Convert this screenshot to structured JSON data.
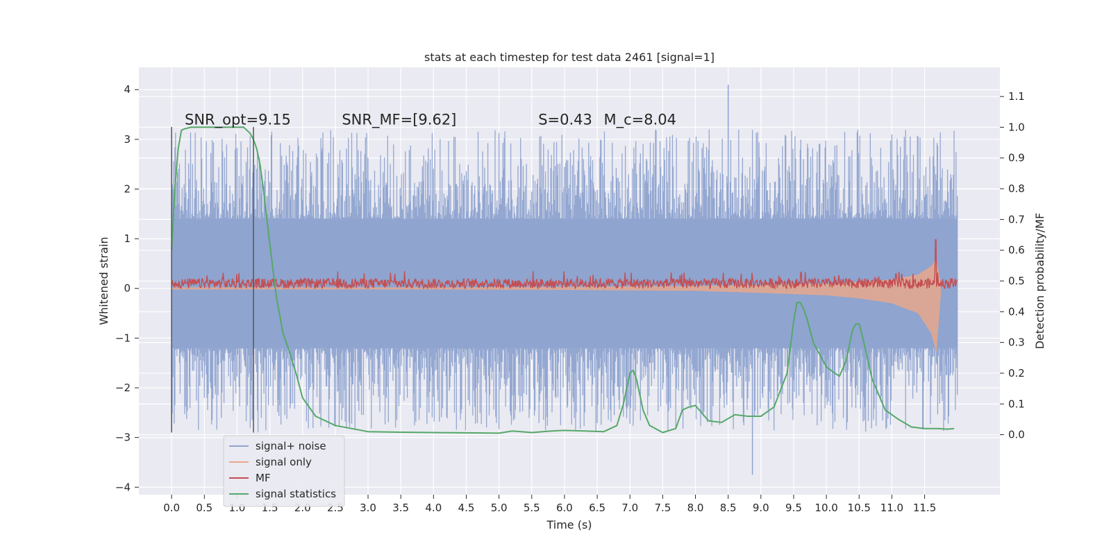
{
  "chart_data": {
    "type": "line",
    "title": "stats at each timestep for test data 2461 [signal=1]",
    "xlabel": "Time (s)",
    "ylabel": "Whitened strain",
    "y2label": "Detection probability/MF",
    "xlim": [
      -0.5,
      12.65
    ],
    "ylim": [
      -4.15,
      4.45
    ],
    "y2lim": [
      -0.195,
      1.195
    ],
    "x_ticks": [
      0.0,
      0.5,
      1.0,
      1.5,
      2.0,
      2.5,
      3.0,
      3.5,
      4.0,
      4.5,
      5.0,
      5.5,
      6.0,
      6.5,
      7.0,
      7.5,
      8.0,
      8.5,
      9.0,
      9.5,
      10.0,
      10.5,
      11.0,
      11.5
    ],
    "x_tick_labels": [
      "0.0",
      "0.5",
      "1.0",
      "1.5",
      "2.0",
      "2.5",
      "3.0",
      "3.5",
      "4.0",
      "4.5",
      "5.0",
      "5.5",
      "6.0",
      "6.5",
      "7.0",
      "7.5",
      "8.0",
      "8.5",
      "9.0",
      "9.5",
      "10.0",
      "10.5",
      "11.0",
      "11.5"
    ],
    "y_ticks": [
      -4,
      -3,
      -2,
      -1,
      0,
      1,
      2,
      3,
      4
    ],
    "y_tick_labels": [
      "−4",
      "−3",
      "−2",
      "−1",
      "0",
      "1",
      "2",
      "3",
      "4"
    ],
    "y2_ticks": [
      0.0,
      0.1,
      0.2,
      0.3,
      0.4,
      0.5,
      0.6,
      0.7,
      0.8,
      0.9,
      1.0,
      1.1
    ],
    "y2_tick_labels": [
      "0.0",
      "0.1",
      "0.2",
      "0.3",
      "0.4",
      "0.5",
      "0.6",
      "0.7",
      "0.8",
      "0.9",
      "1.0",
      "1.1"
    ],
    "grid": true,
    "legend_position": "bottom-left",
    "annotations": [
      {
        "text": "SNR_opt=9.15",
        "x": 0.2,
        "y": 3.3
      },
      {
        "text": "SNR_MF=[9.62]",
        "x": 2.6,
        "y": 3.3
      },
      {
        "text": "S=0.43",
        "x": 5.6,
        "y": 3.3
      },
      {
        "text": "M_c=8.04",
        "x": 6.6,
        "y": 3.3
      }
    ],
    "markers": [
      {
        "x": 0.0,
        "y_from": -2.9,
        "y_to": 3.25
      },
      {
        "x": 1.25,
        "y_from": -2.9,
        "y_to": 3.25
      }
    ],
    "series": [
      {
        "name": "signal+ noise",
        "axis": "left",
        "color": "#8ea3cf",
        "x_range": [
          0.0,
          12.0
        ],
        "band": [
          -1.2,
          1.4
        ],
        "peak_high": 4.1,
        "peak_low": -3.75
      },
      {
        "name": "signal only",
        "axis": "left",
        "color": "#e8a88c",
        "envelope": {
          "x": [
            0.0,
            2.0,
            4.0,
            6.0,
            8.0,
            9.0,
            10.0,
            10.5,
            11.0,
            11.4,
            11.6,
            11.68,
            11.75
          ],
          "upper": [
            0.02,
            0.02,
            0.02,
            0.03,
            0.05,
            0.07,
            0.1,
            0.13,
            0.18,
            0.28,
            0.45,
            0.6,
            0.1
          ],
          "lower": [
            -0.02,
            -0.02,
            -0.02,
            -0.03,
            -0.05,
            -0.09,
            -0.14,
            -0.2,
            -0.3,
            -0.5,
            -0.9,
            -1.3,
            -0.1
          ]
        }
      },
      {
        "name": "MF",
        "axis": "left",
        "color": "#c44e52",
        "x_range": [
          0.0,
          12.0
        ],
        "level": 0.1,
        "peak": {
          "x": 11.67,
          "y": 0.98
        }
      },
      {
        "name": "signal statistics",
        "axis": "right",
        "color": "#55a868",
        "x": [
          0.0,
          0.05,
          0.1,
          0.15,
          0.2,
          0.3,
          0.5,
          0.8,
          1.0,
          1.1,
          1.15,
          1.2,
          1.25,
          1.3,
          1.35,
          1.4,
          1.5,
          1.6,
          1.7,
          1.8,
          1.9,
          2.0,
          2.2,
          2.5,
          3.0,
          3.5,
          4.0,
          4.5,
          5.0,
          5.2,
          5.5,
          5.8,
          6.0,
          6.3,
          6.6,
          6.8,
          6.9,
          7.0,
          7.05,
          7.1,
          7.2,
          7.3,
          7.5,
          7.7,
          7.8,
          7.9,
          8.0,
          8.2,
          8.4,
          8.6,
          8.8,
          9.0,
          9.2,
          9.4,
          9.5,
          9.55,
          9.6,
          9.65,
          9.7,
          9.8,
          10.0,
          10.2,
          10.3,
          10.4,
          10.45,
          10.5,
          10.55,
          10.7,
          10.9,
          11.1,
          11.3,
          11.5,
          11.7,
          11.85,
          11.95
        ],
        "y": [
          0.6,
          0.8,
          0.93,
          0.99,
          0.995,
          1.0,
          1.0,
          1.0,
          1.0,
          1.0,
          0.99,
          0.98,
          0.96,
          0.93,
          0.88,
          0.8,
          0.62,
          0.45,
          0.33,
          0.27,
          0.2,
          0.12,
          0.06,
          0.03,
          0.01,
          0.008,
          0.007,
          0.006,
          0.005,
          0.012,
          0.007,
          0.012,
          0.014,
          0.012,
          0.01,
          0.03,
          0.1,
          0.2,
          0.21,
          0.18,
          0.08,
          0.03,
          0.007,
          0.02,
          0.08,
          0.09,
          0.095,
          0.045,
          0.04,
          0.065,
          0.06,
          0.06,
          0.09,
          0.2,
          0.37,
          0.43,
          0.43,
          0.41,
          0.38,
          0.3,
          0.22,
          0.19,
          0.24,
          0.34,
          0.36,
          0.36,
          0.32,
          0.18,
          0.08,
          0.05,
          0.025,
          0.02,
          0.02,
          0.018,
          0.02
        ]
      }
    ]
  }
}
